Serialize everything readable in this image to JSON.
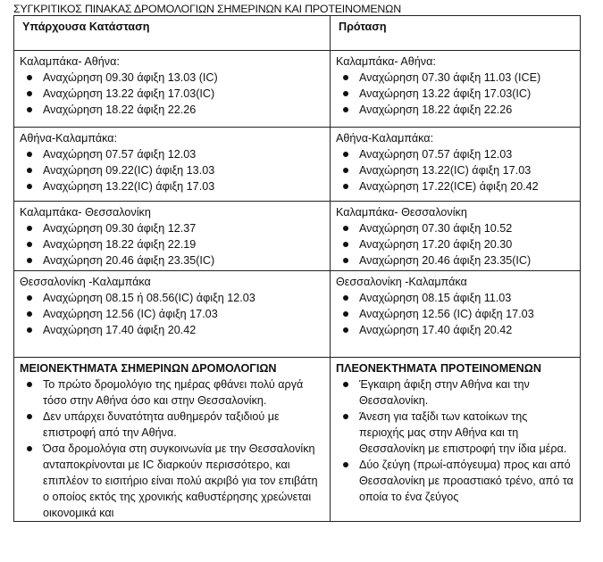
{
  "title": "ΣΥΓΚΡΙΤΙΚΟΣ ΠΙΝΑΚΑΣ  ΔΡΟΜΟΛΟΓΙΩΝ ΣΗΜΕΡΙΝΩΝ ΚΑΙ ΠΡΟΤΕΙΝΟΜΕΝΩΝ",
  "headers": {
    "current": "Υπάρχουσα Κατάσταση",
    "proposal": "Πρόταση"
  },
  "rows": [
    {
      "current": {
        "route": "Καλαμπάκα- Αθήνα:",
        "items": [
          "Αναχώρηση 09.30 άφιξη 13.03 (IC)",
          "Αναχώρηση 13.22 άφιξη 17.03(IC)",
          "Αναχώρηση 18.22 άφιξη 22.26"
        ]
      },
      "proposal": {
        "route": "Καλαμπάκα- Αθήνα:",
        "items": [
          "Αναχώρηση 07.30 άφιξη 11.03 (ICE)",
          "Αναχώρηση 13.22 άφιξη 17.03(IC)",
          "Αναχώρηση 18.22 άφιξη 22.26"
        ]
      }
    },
    {
      "current": {
        "route": "Αθήνα-Καλαμπάκα:",
        "items": [
          "Αναχώρηση 07.57 άφιξη 12.03",
          "Αναχώρηση 09.22(IC) άφιξη 13.03",
          "Αναχώρηση 13.22(IC) άφιξη 17.03"
        ]
      },
      "proposal": {
        "route": "Αθήνα-Καλαμπάκα:",
        "items": [
          "Αναχώρηση 07.57 άφιξη 12.03",
          "Αναχώρηση 13.22(IC) άφιξη 17.03",
          "Αναχώρηση 17.22(ICE) άφιξη 20.42"
        ]
      }
    },
    {
      "current": {
        "route": "Καλαμπάκα- Θεσσαλονίκη",
        "items": [
          "Αναχώρηση 09.30 άφιξη 12.37",
          "Αναχώρηση 18.22 άφιξη 22.19",
          "Αναχώρηση 20.46 άφιξη 23.35(IC)"
        ]
      },
      "proposal": {
        "route": "Καλαμπάκα- Θεσσαλονίκη",
        "items": [
          "Αναχώρηση 07.30 άφιξη 10.52",
          "Αναχώρηση 17.20 άφιξη 20.30",
          "Αναχώρηση 20.46 άφιξη 23.35(IC)"
        ]
      }
    },
    {
      "current": {
        "route": "Θεσσαλονίκη -Καλαμπάκα",
        "items": [
          "Αναχώρηση 08.15 ή 08.56(IC)  άφιξη 12.03",
          "Αναχώρηση 12.56 (IC) άφιξη 17.03",
          "Αναχώρηση 17.40 άφιξη 20.42"
        ]
      },
      "proposal": {
        "route": "Θεσσαλονίκη -Καλαμπάκα",
        "items": [
          "Αναχώρηση 08.15  άφιξη 11.03",
          "Αναχώρηση 12.56 (IC) άφιξη 17.03",
          "Αναχώρηση 17.40 άφιξη 20.42"
        ]
      }
    }
  ],
  "disadvantages": {
    "heading": "ΜΕΙΟΝΕΚΤΗΜΑΤΑ ΣΗΜΕΡΙΝΩΝ ΔΡΟΜΟΛΟΓΙΩΝ",
    "items": [
      "Το πρώτο δρομολόγιο της ημέρας φθάνει πολύ αργά τόσο στην Αθήνα όσο και στην Θεσσαλονίκη.",
      "Δεν υπάρχει δυνατότητα αυθημερόν ταξιδιού με επιστροφή από την Αθήνα.",
      "Όσα δρομολόγια στη συγκοινωνία με την Θεσσαλονίκη ανταποκρίνονται με IC διαρκούν περισσότερο, και επιπλέον το εισιτήριο είναι πολύ ακριβό για τον επιβάτη ο οποίος εκτός της χρονικής καθυστέρησης χρεώνεται οικονομικά και"
    ]
  },
  "advantages": {
    "heading": "ΠΛΕΟΝΕΚΤΗΜΑΤΑ ΠΡΟΤΕΙΝΟΜΕΝΩΝ",
    "items": [
      "Έγκαιρη άφιξη στην Αθήνα και την Θεσσαλονίκη.",
      "Άνεση για ταξίδι των κατοίκων της περιοχής μας στην Αθήνα και τη Θεσσαλονίκη με επιστροφή την ίδια μέρα.",
      "Δύο ζεύγη (πρωί-απόγευμα) προς και από Θεσσαλονίκη με προαστιακό τρένο, από τα οποία το ένα ζεύγος"
    ]
  }
}
